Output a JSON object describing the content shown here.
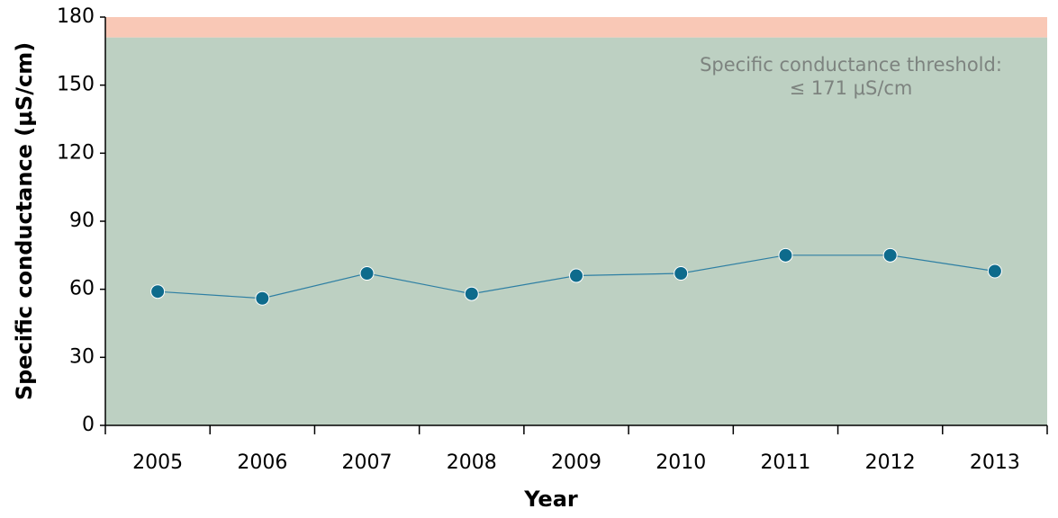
{
  "chart_data": {
    "type": "line",
    "x_label": "Year",
    "y_label": "Specific conductance (μS/cm)",
    "categories": [
      "2005",
      "2006",
      "2007",
      "2008",
      "2009",
      "2010",
      "2011",
      "2012",
      "2013"
    ],
    "series": [
      {
        "name": "Specific conductance",
        "color": "#0e6b8c",
        "values": [
          59,
          56,
          67,
          58,
          66,
          67,
          75,
          75,
          68
        ]
      }
    ],
    "ylim": [
      0,
      180
    ],
    "yticks": [
      0,
      30,
      60,
      90,
      120,
      150,
      180
    ],
    "threshold": 171,
    "below_color": "#bdd0c2",
    "above_color": "#f9c8b6",
    "annotation": [
      "Specific conductance threshold:",
      "≤ 171 μS/cm"
    ]
  }
}
